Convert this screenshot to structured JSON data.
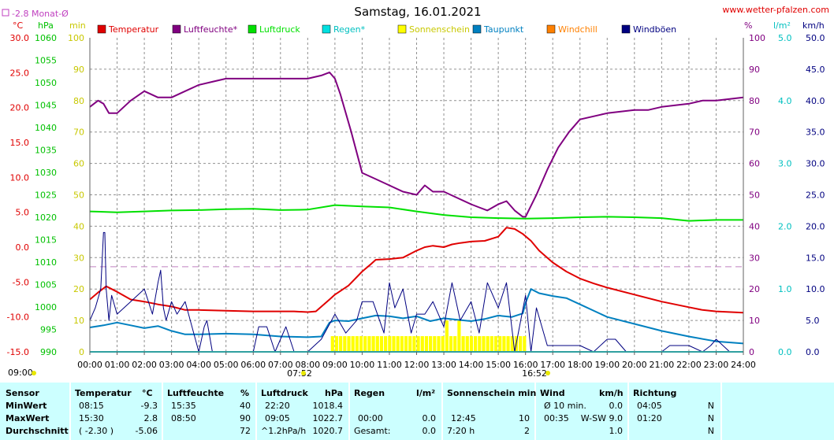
{
  "chart_data": {
    "type": "line",
    "title": "Samstag, 16.01.2021",
    "source": "www.wetter-pfalzen.com",
    "monthly_avg_label": "-2.8 Monat-Ø",
    "monthly_avg_temp": -2.8,
    "left_axis_units": [
      "°C",
      "hPa",
      "min"
    ],
    "right_axis_units": [
      "%",
      "l/m²",
      "km/h"
    ],
    "x_tick_labels": [
      "00:00",
      "01:00",
      "02:00",
      "03:00",
      "04:00",
      "05:00",
      "06:00",
      "07:00",
      "08:00",
      "09:00",
      "10:00",
      "11:00",
      "12:00",
      "13:00",
      "14:00",
      "15:00",
      "16:00",
      "17:00",
      "18:00",
      "19:00",
      "20:00",
      "21:00",
      "22:00",
      "23:00",
      "24:00"
    ],
    "x_range_hours": [
      0,
      24
    ],
    "sunrise": "07:52",
    "sunset": "16:52",
    "axes": {
      "temperature": {
        "unit": "°C",
        "range": [
          -15,
          30
        ],
        "ticks": [
          "30.0",
          "25.0",
          "20.0",
          "15.0",
          "10.0",
          "5.0",
          "0.0",
          "-5.0",
          "-10.0",
          "-15.0"
        ]
      },
      "pressure": {
        "unit": "hPa",
        "range": [
          990,
          1060
        ],
        "ticks": [
          "1060",
          "1055",
          "1050",
          "1045",
          "1040",
          "1035",
          "1030",
          "1025",
          "1020",
          "1015",
          "1010",
          "1005",
          "1000",
          "995",
          "990"
        ]
      },
      "sunshine": {
        "unit": "min",
        "range": [
          0,
          100
        ],
        "ticks": [
          "100",
          "90",
          "80",
          "70",
          "60",
          "50",
          "40",
          "30",
          "20",
          "10",
          "0"
        ]
      },
      "humidity": {
        "unit": "%",
        "range": [
          0,
          100
        ],
        "ticks": [
          "100",
          "90",
          "80",
          "70",
          "60",
          "50",
          "40",
          "30",
          "20",
          "10",
          "0"
        ]
      },
      "rain": {
        "unit": "l/m²",
        "range": [
          0,
          5
        ],
        "ticks": [
          "5.0",
          "4.0",
          "3.0",
          "2.0",
          "1.0",
          "0.0"
        ]
      },
      "wind": {
        "unit": "km/h",
        "range": [
          0,
          50
        ],
        "ticks": [
          "50.0",
          "45.0",
          "40.0",
          "35.0",
          "30.0",
          "25.0",
          "20.0",
          "15.0",
          "10.0",
          "5.0",
          "0.0"
        ]
      }
    },
    "legend": [
      {
        "name": "Temperatur",
        "color": "#e00000"
      },
      {
        "name": "Luftfeuchte*",
        "color": "#800080"
      },
      {
        "name": "Luftdruck",
        "color": "#00e000"
      },
      {
        "name": "Regen*",
        "color": "#00e0e0"
      },
      {
        "name": "Sonnenschein",
        "color": "#ffff00"
      },
      {
        "name": "Taupunkt",
        "color": "#0080c0"
      },
      {
        "name": "Windchill",
        "color": "#ff8000"
      },
      {
        "name": "Windböen",
        "color": "#000080"
      }
    ],
    "series": [
      {
        "name": "Temperatur",
        "axis": "temperature",
        "color": "#e00000",
        "x": [
          0,
          0.3,
          0.6,
          1,
          1.5,
          2,
          2.5,
          3,
          3.5,
          4,
          5,
          6,
          7,
          7.5,
          8,
          8.3,
          8.8,
          9,
          9.5,
          10,
          10.3,
          10.5,
          11,
          11.5,
          12,
          12.3,
          12.6,
          13,
          13.3,
          13.6,
          14,
          14.5,
          15,
          15.3,
          15.6,
          15.9,
          16.2,
          16.5,
          17,
          17.5,
          18,
          18.5,
          19,
          20,
          21,
          22,
          22.5,
          23,
          24
        ],
        "y": [
          -7.5,
          -6.5,
          -5.6,
          -6.4,
          -7.5,
          -7.8,
          -8.2,
          -8.5,
          -9.0,
          -9.0,
          -9.1,
          -9.2,
          -9.2,
          -9.2,
          -9.3,
          -9.2,
          -7.5,
          -6.8,
          -5.5,
          -3.5,
          -2.5,
          -1.8,
          -1.7,
          -1.5,
          -0.5,
          0.0,
          0.2,
          0.0,
          0.4,
          0.6,
          0.8,
          0.9,
          1.5,
          2.8,
          2.6,
          1.9,
          0.9,
          -0.5,
          -2.2,
          -3.5,
          -4.5,
          -5.2,
          -5.8,
          -6.8,
          -7.8,
          -8.6,
          -9.0,
          -9.2,
          -9.4
        ]
      },
      {
        "name": "Luftfeuchte*",
        "axis": "humidity",
        "color": "#800080",
        "x": [
          0,
          0.3,
          0.5,
          0.7,
          1,
          1.5,
          2,
          2.5,
          3,
          3.5,
          4,
          4.5,
          5,
          6,
          7,
          8,
          8.5,
          8.8,
          9,
          9.2,
          9.6,
          10,
          10.5,
          11,
          11.5,
          12,
          12.3,
          12.6,
          13,
          13.5,
          14,
          14.3,
          14.6,
          15,
          15.3,
          15.6,
          15.9,
          16,
          16.4,
          16.8,
          17.2,
          17.6,
          18,
          19,
          20,
          20.5,
          21,
          22,
          22.5,
          23,
          23.5,
          24
        ],
        "y": [
          78,
          80,
          79,
          76,
          76,
          80,
          83,
          81,
          81,
          83,
          85,
          86,
          87,
          87,
          87,
          87,
          88,
          89,
          87,
          82,
          70,
          57,
          55,
          53,
          51,
          50,
          53,
          51,
          51,
          49,
          47,
          46,
          45,
          47,
          48,
          45,
          43,
          43,
          50,
          58,
          65,
          70,
          74,
          76,
          77,
          77,
          78,
          79,
          80,
          80,
          80.5,
          81
        ]
      },
      {
        "name": "Luftdruck",
        "axis": "pressure",
        "color": "#00e000",
        "x": [
          0,
          1,
          2,
          3,
          4,
          5,
          6,
          7,
          8,
          9,
          10,
          11,
          12,
          13,
          14,
          15,
          16,
          17,
          18,
          19,
          20,
          21,
          22,
          23,
          24
        ],
        "y": [
          1021.3,
          1021.1,
          1021.3,
          1021.5,
          1021.6,
          1021.8,
          1021.9,
          1021.6,
          1021.7,
          1022.7,
          1022.4,
          1022.2,
          1021.3,
          1020.5,
          1020.0,
          1019.8,
          1019.7,
          1019.8,
          1020.0,
          1020.1,
          1020.0,
          1019.8,
          1019.2,
          1019.4,
          1019.4
        ]
      },
      {
        "name": "Taupunkt",
        "axis": "temperature",
        "color": "#0080c0",
        "x": [
          0,
          0.5,
          1,
          1.5,
          2,
          2.5,
          3,
          3.5,
          4,
          5,
          6,
          7,
          8,
          8.5,
          8.8,
          9,
          9.5,
          10,
          10.5,
          11,
          11.5,
          12,
          12.5,
          13,
          13.5,
          14,
          14.5,
          15,
          15.5,
          15.9,
          16,
          16.2,
          16.5,
          17,
          17.5,
          18,
          19,
          20,
          21,
          22,
          23,
          24
        ],
        "y": [
          -11.5,
          -11.2,
          -10.8,
          -11.2,
          -11.6,
          -11.3,
          -12.0,
          -12.5,
          -12.5,
          -12.4,
          -12.5,
          -12.8,
          -12.9,
          -12.8,
          -10.8,
          -10.5,
          -10.6,
          -10.2,
          -9.8,
          -9.9,
          -10.2,
          -9.9,
          -10.6,
          -10.2,
          -10.4,
          -10.6,
          -10.3,
          -9.8,
          -10.0,
          -9.5,
          -8.0,
          -6.0,
          -6.6,
          -7.0,
          -7.3,
          -8.2,
          -10.0,
          -11.0,
          -12.0,
          -12.8,
          -13.5,
          -13.8
        ]
      },
      {
        "name": "Windböen",
        "axis": "wind",
        "color": "#000080",
        "x": [
          0,
          0.2,
          0.4,
          0.5,
          0.55,
          0.6,
          0.7,
          0.8,
          1,
          1.5,
          2,
          2.3,
          2.5,
          2.6,
          2.7,
          2.8,
          3.0,
          3.2,
          3.5,
          4.0,
          4.2,
          4.3,
          4.5,
          4.7,
          4.8,
          5.0,
          5.5,
          6.0,
          6.2,
          6.5,
          6.8,
          7,
          7.2,
          7.5,
          8,
          8.5,
          9,
          9.4,
          9.8,
          10,
          10.4,
          10.8,
          11,
          11.2,
          11.5,
          11.8,
          12,
          12.3,
          12.6,
          13,
          13.3,
          13.6,
          14,
          14.3,
          14.6,
          15,
          15.3,
          15.6,
          16,
          16.2,
          16.4,
          16.8,
          17,
          17.3,
          17.5,
          18,
          18.5,
          19,
          19.3,
          19.7,
          20,
          20.5,
          21,
          21.3,
          21.7,
          22,
          22.5,
          22.8,
          23,
          23.5,
          24
        ],
        "y": [
          5,
          7,
          10,
          19,
          19,
          10,
          5,
          9,
          6,
          8,
          10,
          6,
          11,
          13,
          7,
          5,
          8,
          6,
          8,
          0,
          4,
          5,
          0,
          0,
          0,
          0,
          0,
          0,
          4,
          4,
          0,
          2,
          4,
          0,
          0,
          2,
          6,
          3,
          5,
          8,
          8,
          3,
          11,
          7,
          10,
          3,
          6,
          6,
          8,
          4,
          11,
          5,
          8,
          3,
          11,
          7,
          11,
          0,
          9,
          0,
          7,
          1,
          1,
          1,
          1,
          1,
          0,
          2,
          2,
          0,
          0,
          0,
          0,
          1,
          1,
          1,
          0,
          1,
          2,
          0,
          0
        ]
      }
    ],
    "sunshine_minutes": {
      "x": [
        8.85,
        9.0,
        9.15,
        9.3,
        9.45,
        9.6,
        9.75,
        9.9,
        10.05,
        10.2,
        10.35,
        10.5,
        10.65,
        10.8,
        10.95,
        11.1,
        11.25,
        11.4,
        11.55,
        11.7,
        11.85,
        12.0,
        12.15,
        12.3,
        12.45,
        12.6,
        12.75,
        12.9,
        13.05,
        13.2,
        13.35,
        13.5,
        13.65,
        13.8,
        13.95,
        14.1,
        14.25,
        14.4,
        14.55,
        14.7,
        14.85,
        15.0,
        15.15,
        15.3,
        15.45,
        15.6,
        15.75,
        15.9
      ],
      "y": [
        5,
        5,
        5,
        5,
        5,
        5,
        5,
        5,
        5,
        5,
        5,
        5,
        5,
        5,
        5,
        5,
        5,
        5,
        5,
        5,
        5,
        5,
        5,
        5,
        5,
        5,
        5,
        5,
        10,
        5,
        5,
        10,
        5,
        5,
        5,
        5,
        5,
        5,
        5,
        5,
        5,
        5,
        5,
        5,
        5,
        5,
        5,
        5
      ]
    }
  },
  "summary_table": {
    "columns": [
      "Sensor",
      "Temperatur",
      "°C",
      "Luftfeuchte",
      "%",
      "Luftdruck",
      "hPa",
      "Regen",
      "l/m²",
      "Sonnenschein min",
      "Wind",
      "km/h",
      "Richtung"
    ],
    "rows": [
      {
        "label": "MinWert",
        "temp_time": "08:15",
        "temp_val": "-9.3",
        "hum_time": "15:35",
        "hum_val": "40",
        "press_time": "22:20",
        "press_val": "1018.4",
        "rain_time": "",
        "rain_val": "",
        "sun_time": "",
        "sun_val": "",
        "wind_time": "Ø 10 min.",
        "wind_val": "0.0",
        "dir_time": "04:05",
        "dir_val": "N"
      },
      {
        "label": "MaxWert",
        "temp_time": "15:30",
        "temp_val": "2.8",
        "hum_time": "08:50",
        "hum_val": "90",
        "press_time": "09:05",
        "press_val": "1022.7",
        "rain_time": "00:00",
        "rain_val": "0.0",
        "sun_time": "12:45",
        "sun_val": "10",
        "wind_time": "00:35",
        "wind_val": "W-SW 9.0",
        "dir_time": "01:20",
        "dir_val": "N"
      },
      {
        "label": "Durchschnitt",
        "temp_time": "( -2.30 )",
        "temp_val": "-5.06",
        "hum_time": "",
        "hum_val": "72",
        "press_time": "^1.2hPa/h",
        "press_val": "1020.7",
        "rain_time": "Gesamt:",
        "rain_val": "0.0",
        "sun_time": "7:20 h",
        "sun_val": "2",
        "wind_time": "",
        "wind_val": "1.0",
        "dir_time": "",
        "dir_val": "N"
      }
    ]
  }
}
